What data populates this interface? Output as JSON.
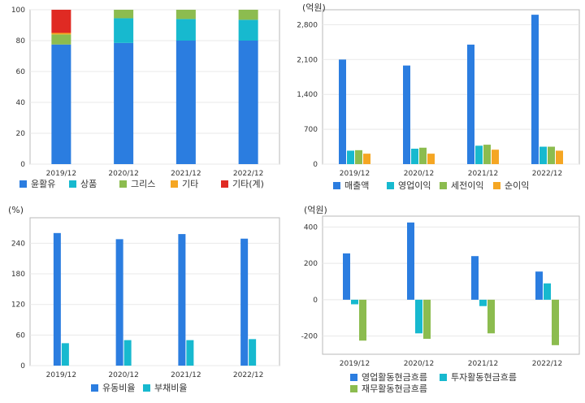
{
  "chart_data": [
    {
      "type": "bar",
      "stacked": true,
      "title": "",
      "unit": "",
      "categories": [
        "2019/12",
        "2020/12",
        "2021/12",
        "2022/12"
      ],
      "ylim": [
        0,
        100
      ],
      "yticks": [
        0,
        20,
        40,
        60,
        80,
        100
      ],
      "grid": true,
      "legend_position": "bottom",
      "series": [
        {
          "name": "윤활유",
          "color": "#2b7de0",
          "values": [
            77.5,
            78.5,
            80,
            80
          ]
        },
        {
          "name": "상품",
          "color": "#17b9cf",
          "values": [
            0,
            16,
            14,
            13.5
          ]
        },
        {
          "name": "그리스",
          "color": "#8cbc4f",
          "values": [
            6.5,
            5.5,
            6,
            6.5
          ]
        },
        {
          "name": "기타",
          "color": "#f5a623",
          "values": [
            1,
            0,
            0,
            0
          ]
        },
        {
          "name": "기타(계)",
          "color": "#e02a23",
          "values": [
            15,
            0,
            0,
            0
          ]
        }
      ]
    },
    {
      "type": "bar",
      "stacked": false,
      "title": "",
      "unit": "(억원)",
      "categories": [
        "2019/12",
        "2020/12",
        "2021/12",
        "2022/12"
      ],
      "ylim": [
        0,
        3100
      ],
      "yticks": [
        0,
        700,
        1400,
        2100,
        2800
      ],
      "ytick_labels": [
        "0",
        "700",
        "1,400",
        "2,100",
        "2,800"
      ],
      "grid": true,
      "legend_position": "bottom",
      "series": [
        {
          "name": "매출액",
          "color": "#2b7de0",
          "values": [
            2100,
            1980,
            2400,
            3000
          ]
        },
        {
          "name": "영업이익",
          "color": "#17b9cf",
          "values": [
            270,
            310,
            370,
            350
          ]
        },
        {
          "name": "세전이익",
          "color": "#8cbc4f",
          "values": [
            280,
            330,
            390,
            350
          ]
        },
        {
          "name": "순이익",
          "color": "#f5a623",
          "values": [
            210,
            210,
            290,
            270
          ]
        }
      ]
    },
    {
      "type": "bar",
      "stacked": false,
      "title": "",
      "unit": "(%)",
      "categories": [
        "2019/12",
        "2020/12",
        "2021/12",
        "2022/12"
      ],
      "ylim": [
        0,
        290
      ],
      "yticks": [
        0,
        60,
        120,
        180,
        240
      ],
      "grid": true,
      "legend_position": "bottom",
      "series": [
        {
          "name": "유동비율",
          "color": "#2b7de0",
          "values": [
            260,
            248,
            258,
            249
          ]
        },
        {
          "name": "부채비율",
          "color": "#17b9cf",
          "values": [
            44,
            50,
            50,
            52
          ]
        }
      ]
    },
    {
      "type": "bar",
      "stacked": false,
      "title": "",
      "unit": "(억원)",
      "categories": [
        "2019/12",
        "2020/12",
        "2021/12",
        "2022/12"
      ],
      "ylim": [
        -300,
        460
      ],
      "yticks": [
        -200,
        0,
        200,
        400
      ],
      "grid": true,
      "legend_position": "bottom",
      "series": [
        {
          "name": "영업활동현금흐름",
          "color": "#2b7de0",
          "values": [
            255,
            425,
            240,
            155
          ]
        },
        {
          "name": "투자활동현금흐름",
          "color": "#17b9cf",
          "values": [
            -25,
            -185,
            -35,
            90
          ]
        },
        {
          "name": "재무활동현금흐름",
          "color": "#8cbc4f",
          "values": [
            -225,
            -215,
            -185,
            -250
          ]
        }
      ]
    }
  ]
}
